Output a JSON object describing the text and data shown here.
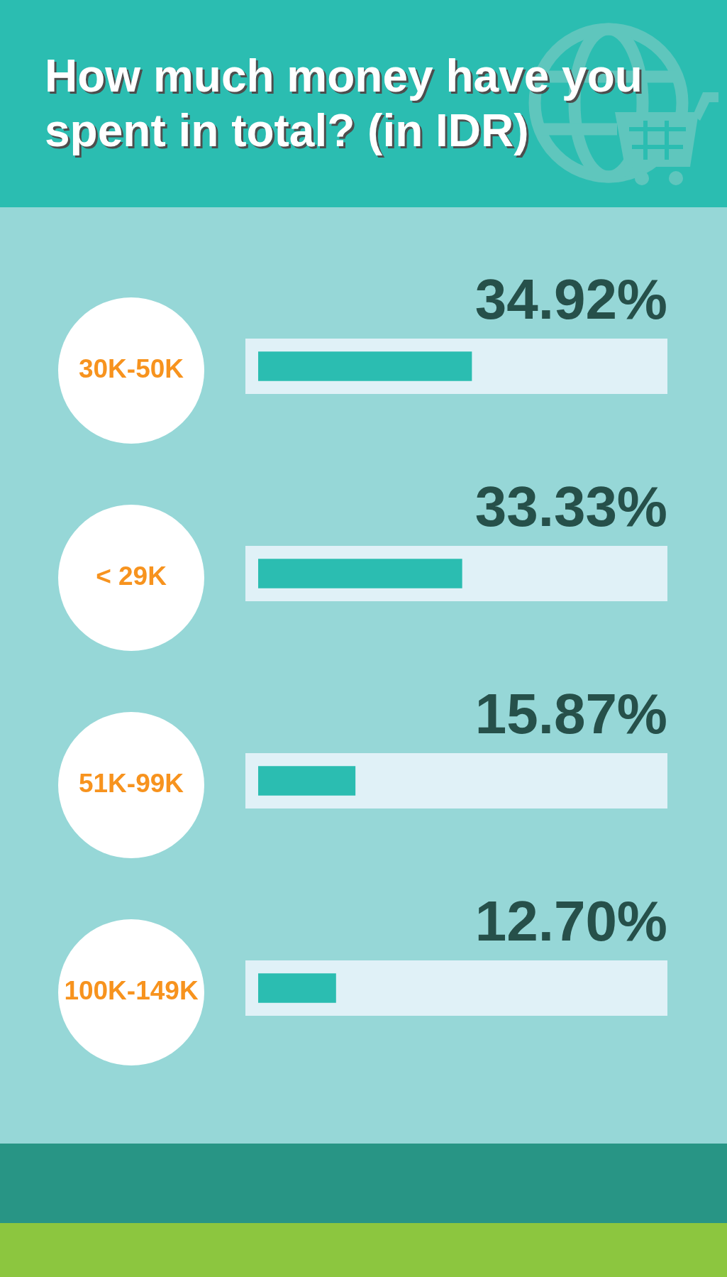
{
  "chart_data": {
    "type": "bar",
    "orientation": "horizontal",
    "title": "How much money have you spent in total? (in IDR)",
    "categories": [
      "30K-50K",
      "< 29K",
      "51K-99K",
      "100K-149K"
    ],
    "values": [
      34.92,
      33.33,
      15.87,
      12.7
    ],
    "value_labels": [
      "34.92%",
      "33.33%",
      "15.87%",
      "12.70%"
    ],
    "color": "#2bbdb1"
  }
}
